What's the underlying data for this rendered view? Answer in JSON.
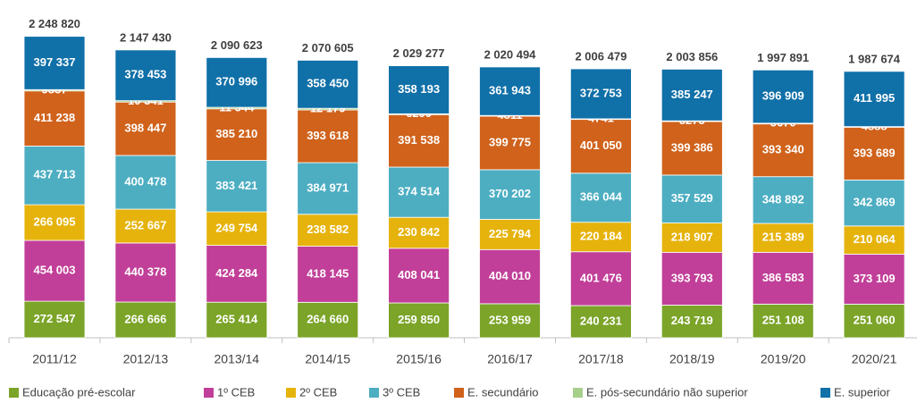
{
  "chart_data": {
    "type": "stacked-bar",
    "categories": [
      "2011/12",
      "2012/13",
      "2013/14",
      "2014/15",
      "2015/16",
      "2016/17",
      "2017/18",
      "2018/19",
      "2019/20",
      "2020/21"
    ],
    "series": [
      {
        "name": "Educação pré-escolar",
        "color": "#7ba428",
        "values": [
          272547,
          266666,
          265414,
          264660,
          259850,
          253959,
          240231,
          243719,
          251108,
          251060
        ],
        "value_labels": [
          "272 547",
          "266 666",
          "265 414",
          "264 660",
          "259 850",
          "253 959",
          "240 231",
          "243 719",
          "251 108",
          "251 060"
        ]
      },
      {
        "name": "1º CEB",
        "color": "#c13f98",
        "values": [
          454003,
          440378,
          424284,
          418145,
          408041,
          404010,
          401476,
          393793,
          386583,
          373109
        ],
        "value_labels": [
          "454 003",
          "440 378",
          "424 284",
          "418 145",
          "408 041",
          "404 010",
          "401 476",
          "393 793",
          "386 583",
          "373 109"
        ]
      },
      {
        "name": "2º CEB",
        "color": "#e6b30c",
        "values": [
          266095,
          252667,
          249754,
          238582,
          230842,
          225794,
          220184,
          218907,
          215389,
          210064
        ],
        "value_labels": [
          "266 095",
          "252 667",
          "249 754",
          "238 582",
          "230 842",
          "225 794",
          "220 184",
          "218 907",
          "215 389",
          "210 064"
        ]
      },
      {
        "name": "3º CEB",
        "color": "#4daec2",
        "values": [
          437713,
          400478,
          383421,
          384971,
          374514,
          370202,
          366044,
          357529,
          348892,
          342869
        ],
        "value_labels": [
          "437 713",
          "400 478",
          "383 421",
          "384 971",
          "374 514",
          "370 202",
          "366 044",
          "357 529",
          "348 892",
          "342 869"
        ]
      },
      {
        "name": "E. secundário",
        "color": "#d0621b",
        "values": [
          411238,
          398447,
          385210,
          393618,
          391538,
          399775,
          401050,
          399386,
          393340,
          393689
        ],
        "value_labels": [
          "411 238",
          "398 447",
          "385 210",
          "393 618",
          "391 538",
          "399 775",
          "401 050",
          "399 386",
          "393 340",
          "393 689"
        ]
      },
      {
        "name": "E. pós-secundário não superior",
        "color": "#a8cf8a",
        "values": [
          9887,
          10341,
          11544,
          12179,
          6299,
          4811,
          4741,
          5275,
          5670,
          4888
        ],
        "value_labels": [
          "9887",
          "10 341",
          "11 544",
          "12 179",
          "6299",
          "4811",
          "4741",
          "5275",
          "5670",
          "4888"
        ]
      },
      {
        "name": "E. superior",
        "color": "#1070a8",
        "values": [
          397337,
          378453,
          370996,
          358450,
          358193,
          361943,
          372753,
          385247,
          396909,
          411995
        ],
        "value_labels": [
          "397 337",
          "378 453",
          "370 996",
          "358 450",
          "358 193",
          "361 943",
          "372 753",
          "385 247",
          "396 909",
          "411 995"
        ]
      }
    ],
    "totals": [
      2248820,
      2147430,
      2090623,
      2070605,
      2029277,
      2020494,
      2006479,
      2003856,
      1997891,
      1987674
    ],
    "total_labels": [
      "2 248 820",
      "2 147 430",
      "2 090 623",
      "2 070 605",
      "2 029 277",
      "2 020 494",
      "2 006 479",
      "2 003 856",
      "1 997 891",
      "1 987 674"
    ]
  }
}
